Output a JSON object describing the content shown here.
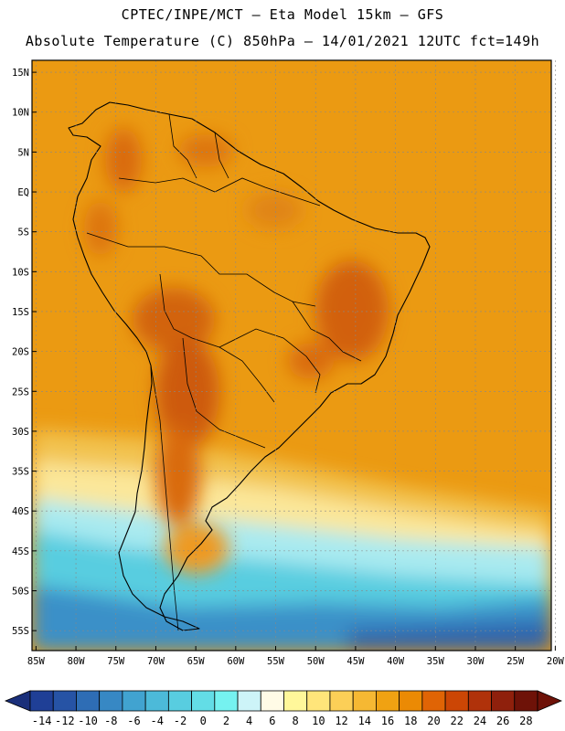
{
  "header": {
    "line1": "CPTEC/INPE/MCT –   Eta Model 15km – GFS",
    "line2": "Absolute Temperature (C) 850hPa – 14/01/2021 12UTC fct=149h"
  },
  "axes": {
    "lat_labels": [
      "15N",
      "10N",
      "5N",
      "EQ",
      "5S",
      "10S",
      "15S",
      "20S",
      "25S",
      "30S",
      "35S",
      "40S",
      "45S",
      "50S",
      "55S"
    ],
    "lon_labels": [
      "85W",
      "80W",
      "75W",
      "70W",
      "65W",
      "60W",
      "55W",
      "50W",
      "45W",
      "40W",
      "35W",
      "30W",
      "25W",
      "20W"
    ],
    "lat_range": [
      16.5,
      -57.5
    ],
    "lon_range": [
      -85.5,
      -20.5
    ]
  },
  "colorbar": {
    "labels": [
      "-14",
      "-12",
      "-10",
      "-8",
      "-6",
      "-4",
      "-2",
      "0",
      "2",
      "4",
      "6",
      "8",
      "10",
      "12",
      "14",
      "16",
      "18",
      "20",
      "22",
      "24",
      "26",
      "28"
    ],
    "colors": [
      "#1f3f96",
      "#2653a5",
      "#2e6db5",
      "#3788c4",
      "#41a3d0",
      "#4cbad9",
      "#58cde0",
      "#63dde6",
      "#75f2f0",
      "#cdf4f8",
      "#fffbe6",
      "#fff79a",
      "#ffe57a",
      "#fccf57",
      "#f6b833",
      "#f0a212",
      "#eb8a04",
      "#e06405",
      "#cc4605",
      "#b0320a",
      "#8f200c",
      "#6e1208"
    ]
  }
}
